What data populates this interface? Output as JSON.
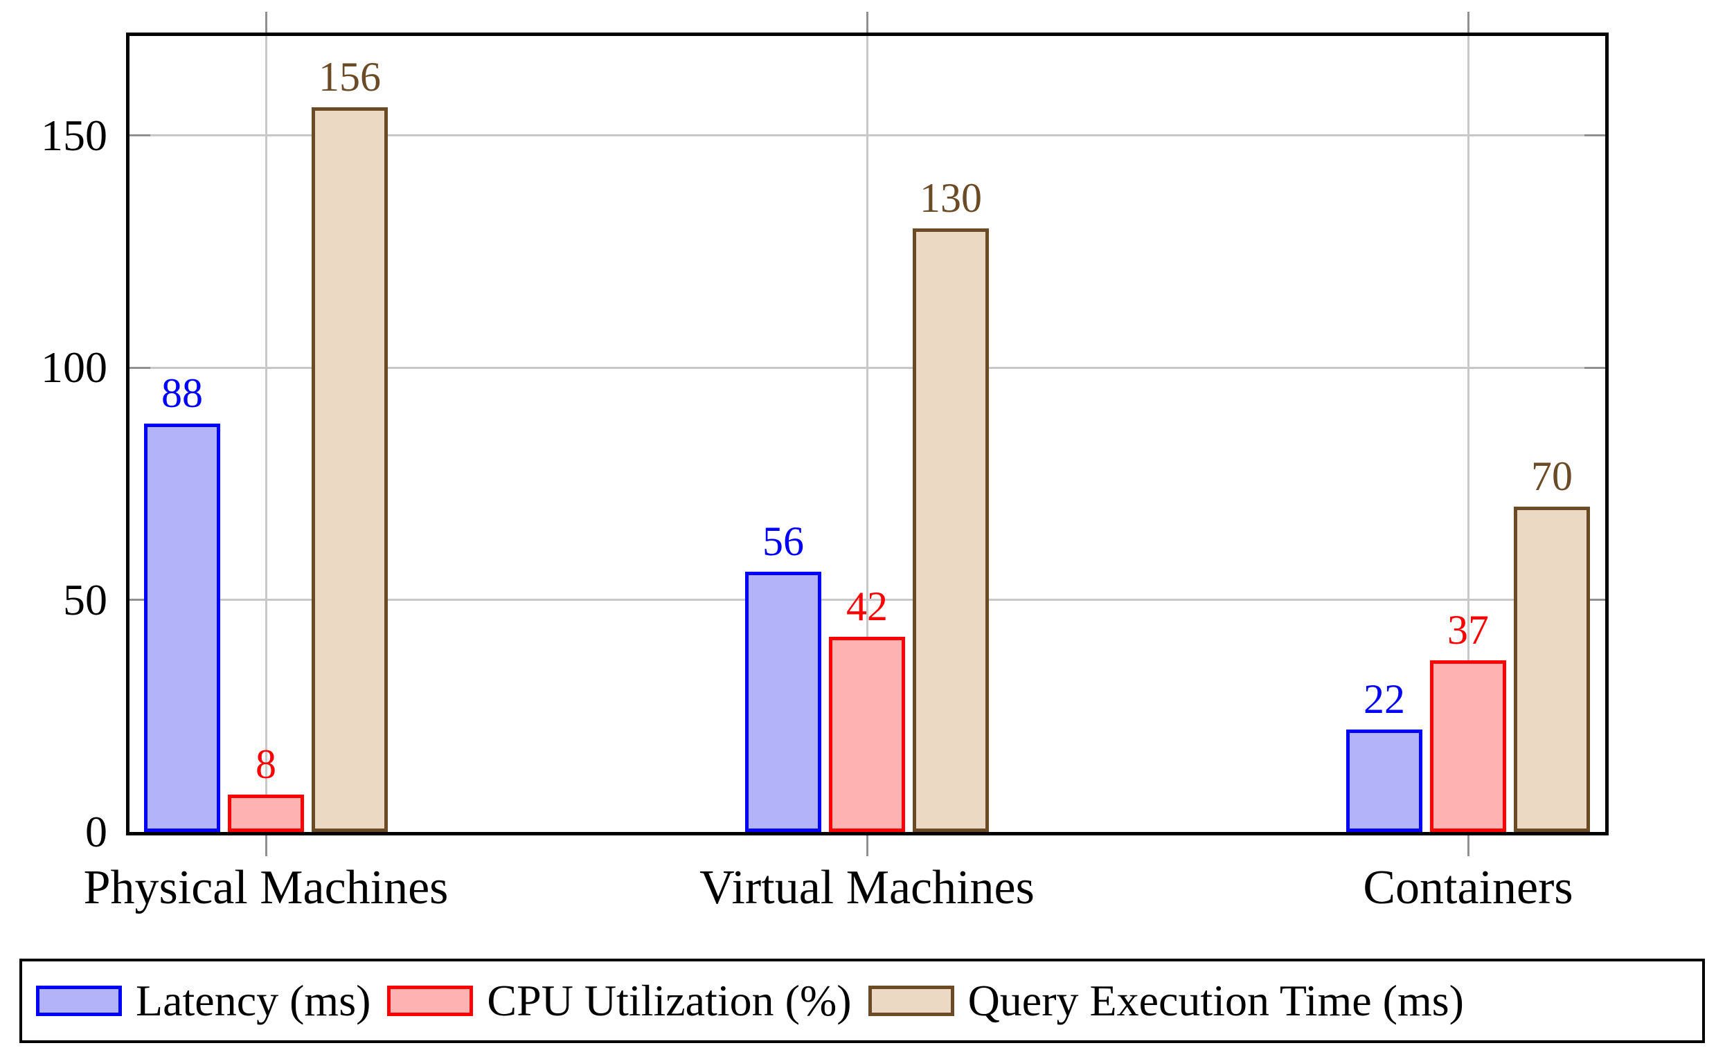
{
  "chart_data": {
    "type": "bar",
    "categories": [
      "Physical Machines",
      "Virtual Machines",
      "Containers"
    ],
    "series": [
      {
        "name": "Latency (ms)",
        "values": [
          88,
          56,
          22
        ],
        "border_color": "#0000ff",
        "fill_color": "#b3b3fa",
        "label_color": "#0000ff"
      },
      {
        "name": "CPU Utilization (%)",
        "values": [
          8,
          42,
          37
        ],
        "border_color": "#ff0000",
        "fill_color": "#ffb2b2",
        "label_color": "#ff0000"
      },
      {
        "name": "Query Execution Time (ms)",
        "values": [
          156,
          130,
          70
        ],
        "border_color": "#6b4a26",
        "fill_color": "#ebd9c4",
        "label_color": "#6b4a26"
      }
    ],
    "title": "",
    "xlabel": "",
    "ylabel": "",
    "y_ticks": [
      0,
      50,
      100,
      150
    ],
    "ylim": [
      0,
      171
    ],
    "grid": true,
    "legend_position": "bottom",
    "bar_value_labels": true
  },
  "legend": {
    "items": [
      "Latency (ms)",
      "CPU Utilization (%)",
      "Query Execution Time (ms)"
    ]
  },
  "colors": {
    "grid": "#c8c8c8",
    "tick": "#909090",
    "frame": "#000000",
    "background": "#ffffff"
  }
}
